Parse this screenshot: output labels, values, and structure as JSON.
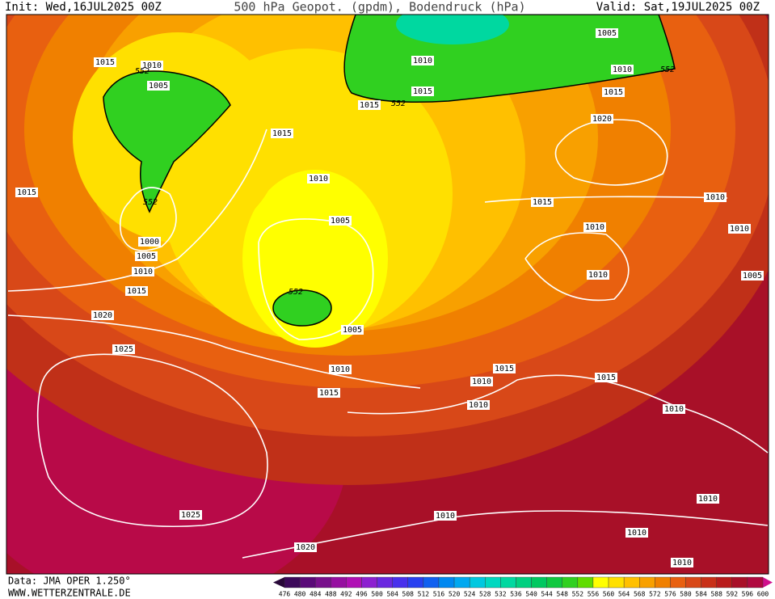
{
  "header": {
    "init": "Init: Wed,16JUL2025 00Z",
    "title": "500 hPa Geopot. (gpdm), Bodendruck (hPa)",
    "valid": "Valid: Sat,19JUL2025 00Z"
  },
  "footer": {
    "data_source": "Data: JMA OPER 1.250°",
    "website": "WWW.WETTERZENTRALE.DE"
  },
  "colorbar": {
    "labels": [
      476,
      480,
      484,
      488,
      492,
      496,
      500,
      504,
      508,
      512,
      516,
      520,
      524,
      528,
      532,
      536,
      540,
      544,
      548,
      552,
      556,
      560,
      564,
      568,
      572,
      576,
      580,
      584,
      588,
      592,
      596,
      600
    ],
    "colors": [
      "#3c0a5a",
      "#5a0a78",
      "#78108c",
      "#9610a0",
      "#b010b4",
      "#8c20d0",
      "#6a28e0",
      "#4830ec",
      "#2840f0",
      "#1060f0",
      "#0088f0",
      "#00a8f0",
      "#00c8e0",
      "#00d8c0",
      "#00d8a0",
      "#00d080",
      "#00c860",
      "#10c840",
      "#30d020",
      "#60dc00",
      "#ffff00",
      "#ffe000",
      "#ffc000",
      "#f8a000",
      "#f08000",
      "#e86010",
      "#d84818",
      "#c83018",
      "#b81c1c",
      "#a81028",
      "#b00a40"
    ]
  },
  "isobar_labels": [
    1015,
    1010,
    552,
    1005,
    1015,
    1010,
    1015,
    552,
    1000,
    1005,
    1010,
    1015,
    1020,
    1025,
    1005,
    552,
    1005,
    1010,
    1015,
    1010,
    1015,
    1015,
    552,
    1005,
    1010,
    552,
    1015,
    1020,
    1015,
    1010,
    1010,
    1010,
    1005,
    1010,
    1015,
    1010,
    1015,
    1010,
    1010,
    1010,
    1025,
    1010,
    1010,
    1020,
    1010
  ]
}
